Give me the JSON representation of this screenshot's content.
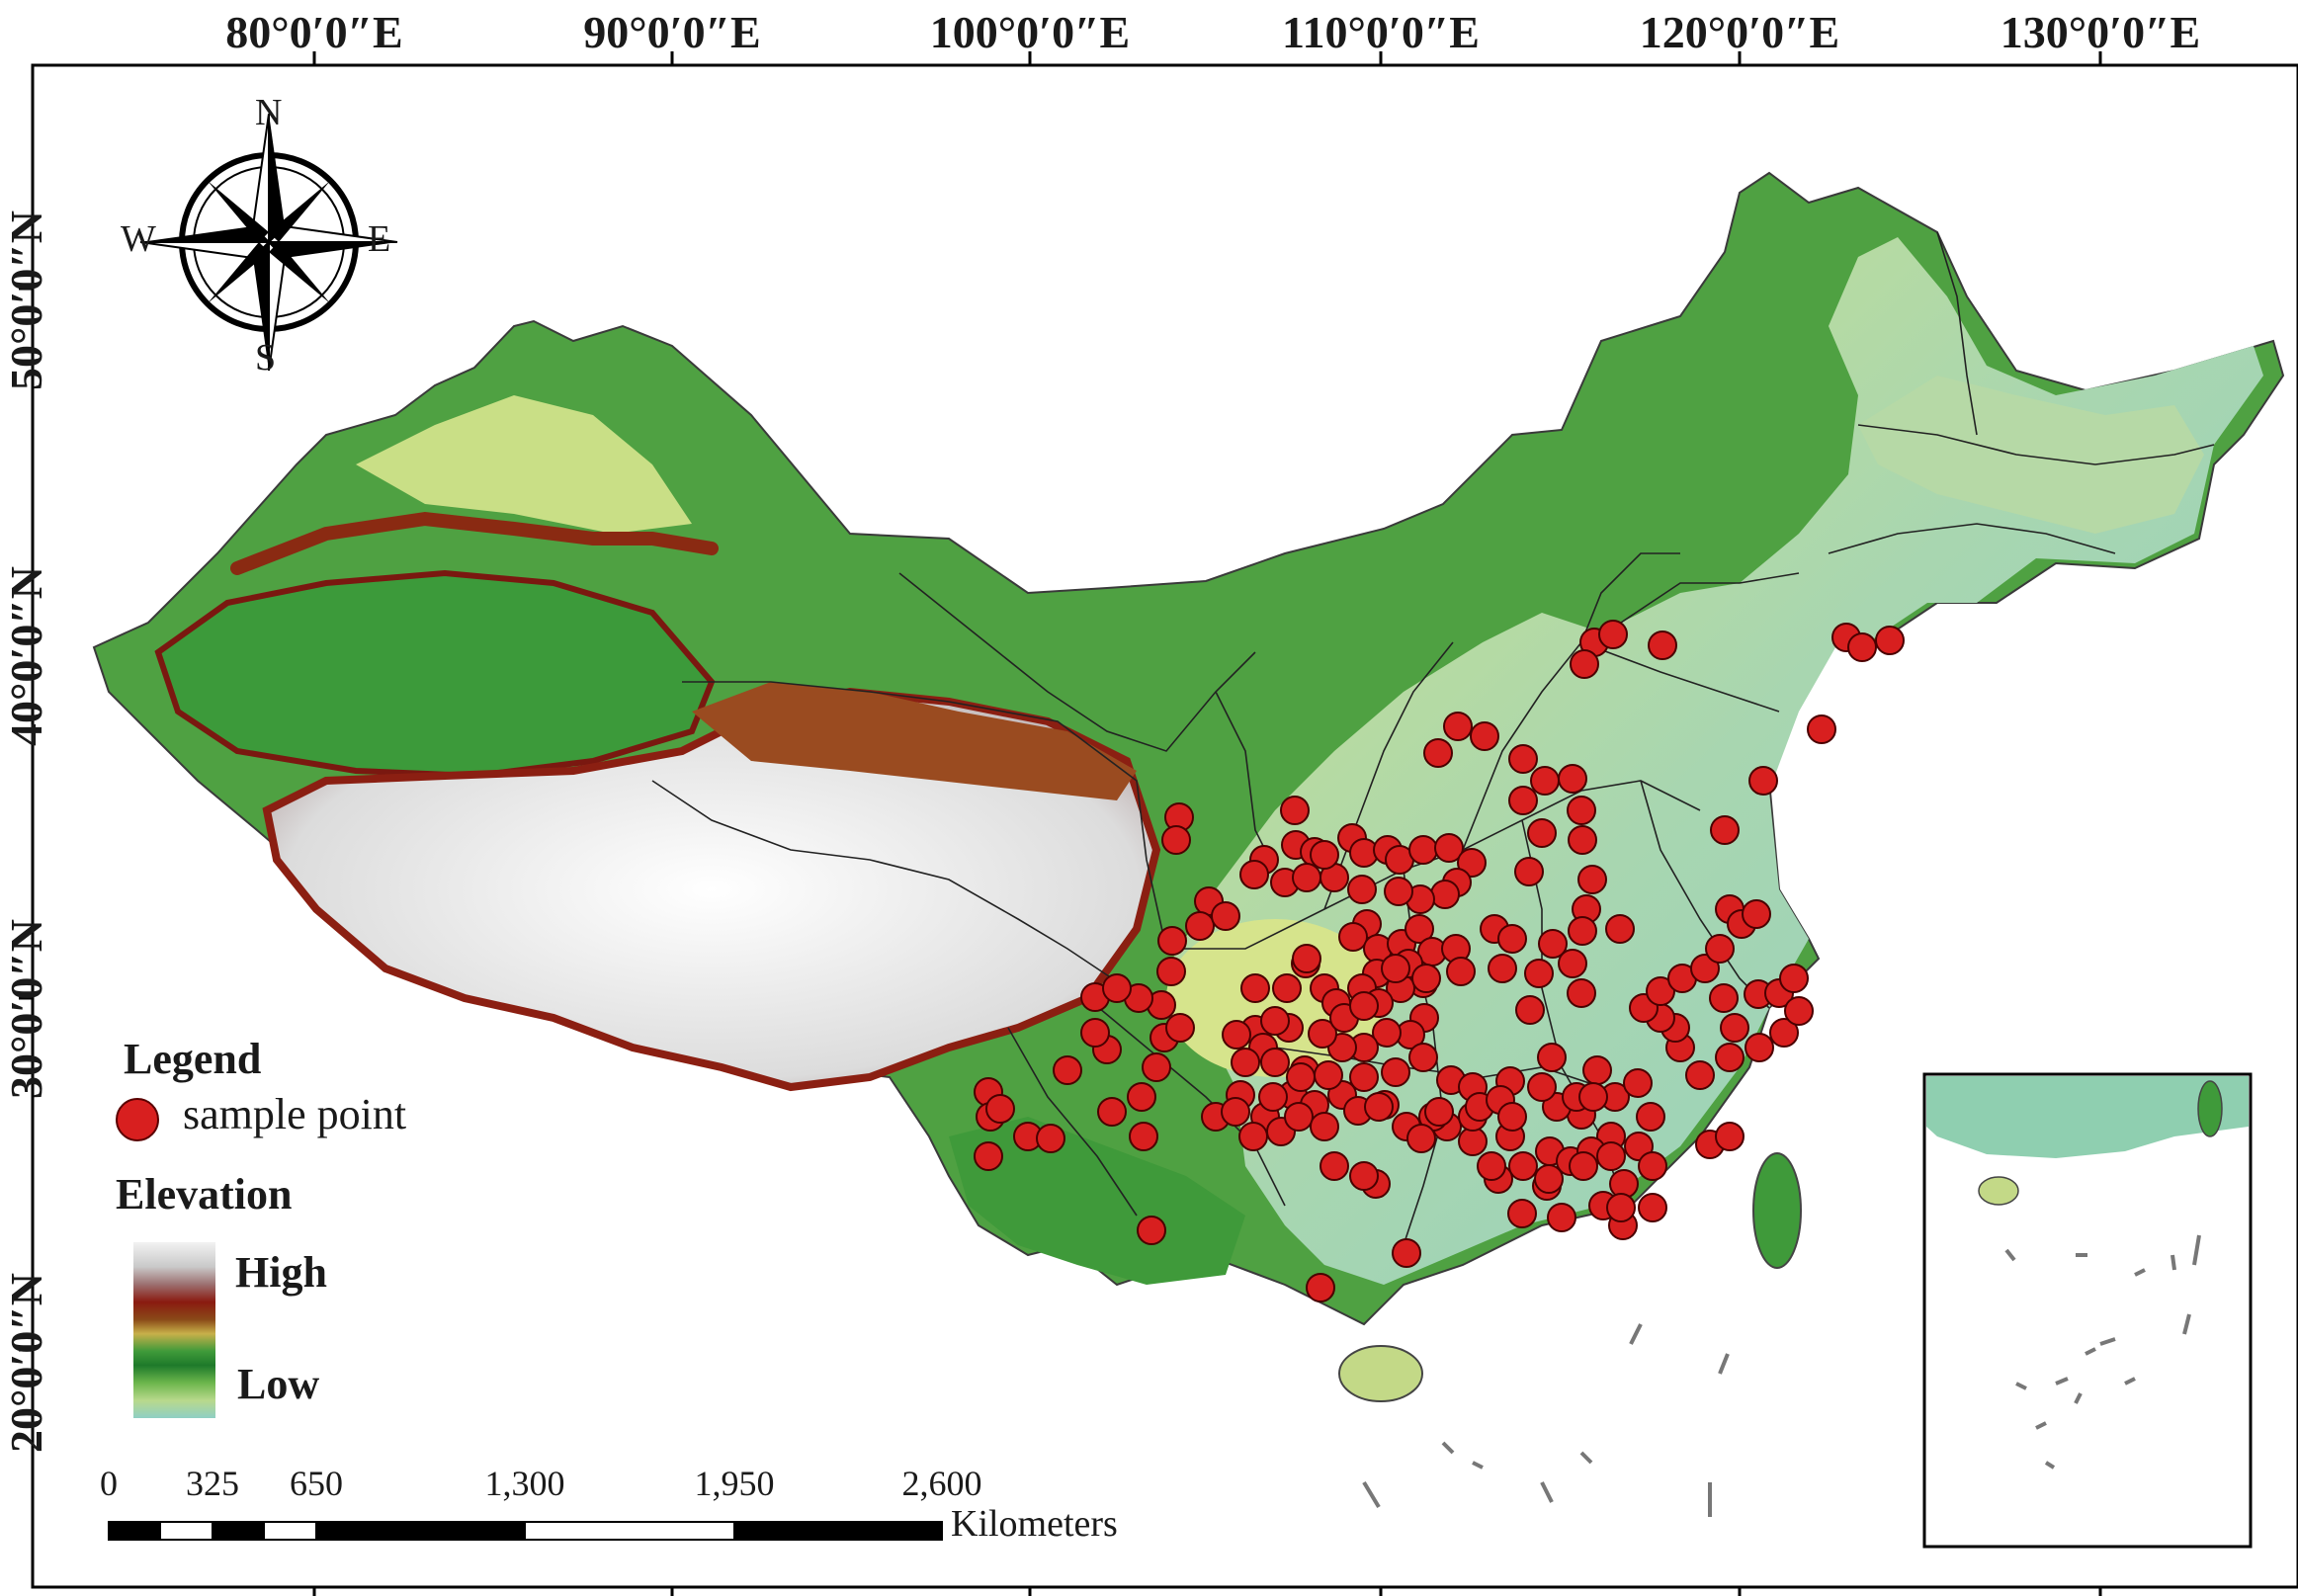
{
  "longitude_labels": [
    "80°0′0″E",
    "90°0′0″E",
    "100°0′0″E",
    "110°0′0″E",
    "120°0′0″E",
    "130°0′0″E"
  ],
  "latitude_labels": [
    "50°0′0″N",
    "40°0′0″N",
    "30°0′0″N",
    "20°0′0″N"
  ],
  "compass": {
    "north": "N",
    "south": "S",
    "east": "E",
    "west": "W"
  },
  "legend": {
    "title": "Legend",
    "sample_point_label": "sample point",
    "sample_point_color": "#d81f1f",
    "elevation_title": "Elevation",
    "elevation_high": "High",
    "elevation_low": "Low"
  },
  "scale_bar": {
    "ticks": [
      "0",
      "325",
      "650",
      "1,300",
      "1,950",
      "2,600"
    ],
    "unit": "Kilometers"
  },
  "colors": {
    "lowland": "#9fd0c0",
    "plain": "#d9e48a",
    "hills": "#3f9a3a",
    "highland": "#8a1a10",
    "plateau": "#f0f0f0",
    "sea_islands": "#8a8a8a"
  }
}
